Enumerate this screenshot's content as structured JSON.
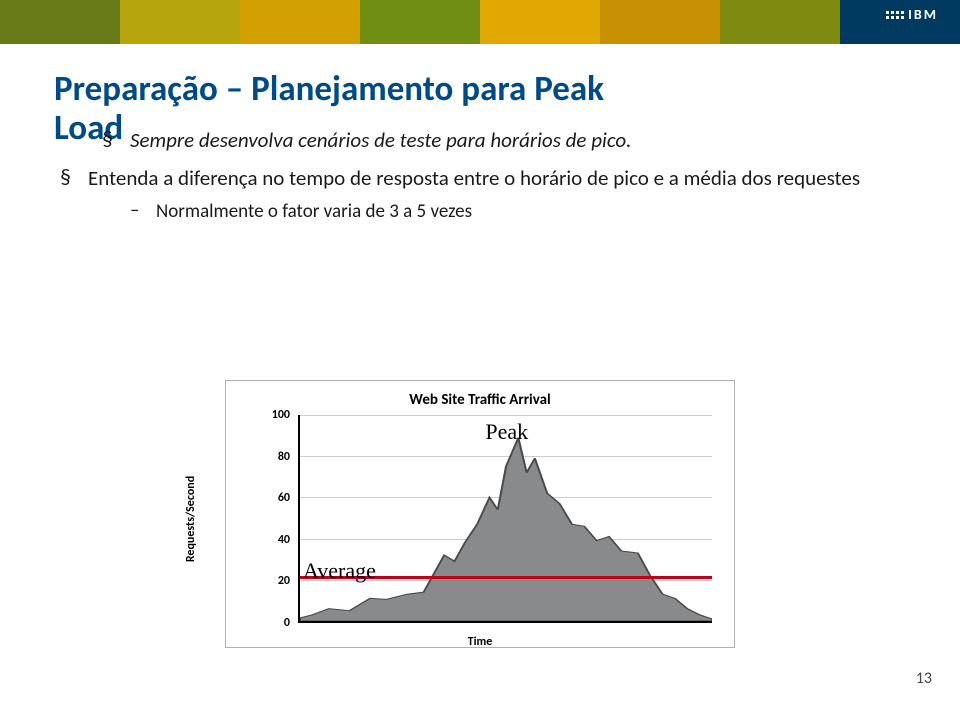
{
  "banner": {
    "colors": [
      "#687a18",
      "#b7a50d",
      "#d2a100",
      "#6f8e13",
      "#e0a800",
      "#c89005",
      "#7f8a10",
      "#003a60"
    ],
    "logo_text": "IBM"
  },
  "title_line1": "Preparação – Planejamento para Peak",
  "title_line2": "Load",
  "bullets": {
    "marker": "§",
    "b1": "Sempre desenvolva cenários de teste para horários de pico.",
    "b2": "Entenda a diferença no tempo de resposta entre o horário de pico e a média dos requestes",
    "sub_dash": "–",
    "sub1": "Normalmente o fator varia de 3 a 5 vezes"
  },
  "chart": {
    "title": "Web Site Traffic Arrival",
    "ylabel": "Requests/Second",
    "xlabel": "Time",
    "ymax": 100,
    "yticks": [
      0,
      20,
      40,
      60,
      80,
      100
    ],
    "grid_color": "#cccccc",
    "fill_color": "#898a8c",
    "stroke_color": "#4a4a4a",
    "avg_line_color": "#c00018",
    "avg_line_value": 22,
    "peak_label": "Peak",
    "average_label": "Average",
    "series": [
      [
        0,
        1.5
      ],
      [
        3,
        3
      ],
      [
        7,
        6
      ],
      [
        12,
        5
      ],
      [
        17,
        11
      ],
      [
        21,
        10.5
      ],
      [
        26,
        13
      ],
      [
        30,
        14
      ],
      [
        35,
        32
      ],
      [
        37.5,
        29
      ],
      [
        40,
        38
      ],
      [
        43,
        47
      ],
      [
        46,
        60
      ],
      [
        48,
        54
      ],
      [
        50,
        75
      ],
      [
        53,
        89
      ],
      [
        55,
        72
      ],
      [
        57,
        79
      ],
      [
        60,
        62
      ],
      [
        63,
        57
      ],
      [
        66,
        47
      ],
      [
        69,
        46
      ],
      [
        72,
        39
      ],
      [
        75,
        41
      ],
      [
        78,
        34
      ],
      [
        82,
        33
      ],
      [
        85,
        22
      ],
      [
        88,
        13
      ],
      [
        91,
        11
      ],
      [
        94,
        6
      ],
      [
        97,
        3
      ],
      [
        100,
        1
      ]
    ]
  },
  "page_number": "13"
}
